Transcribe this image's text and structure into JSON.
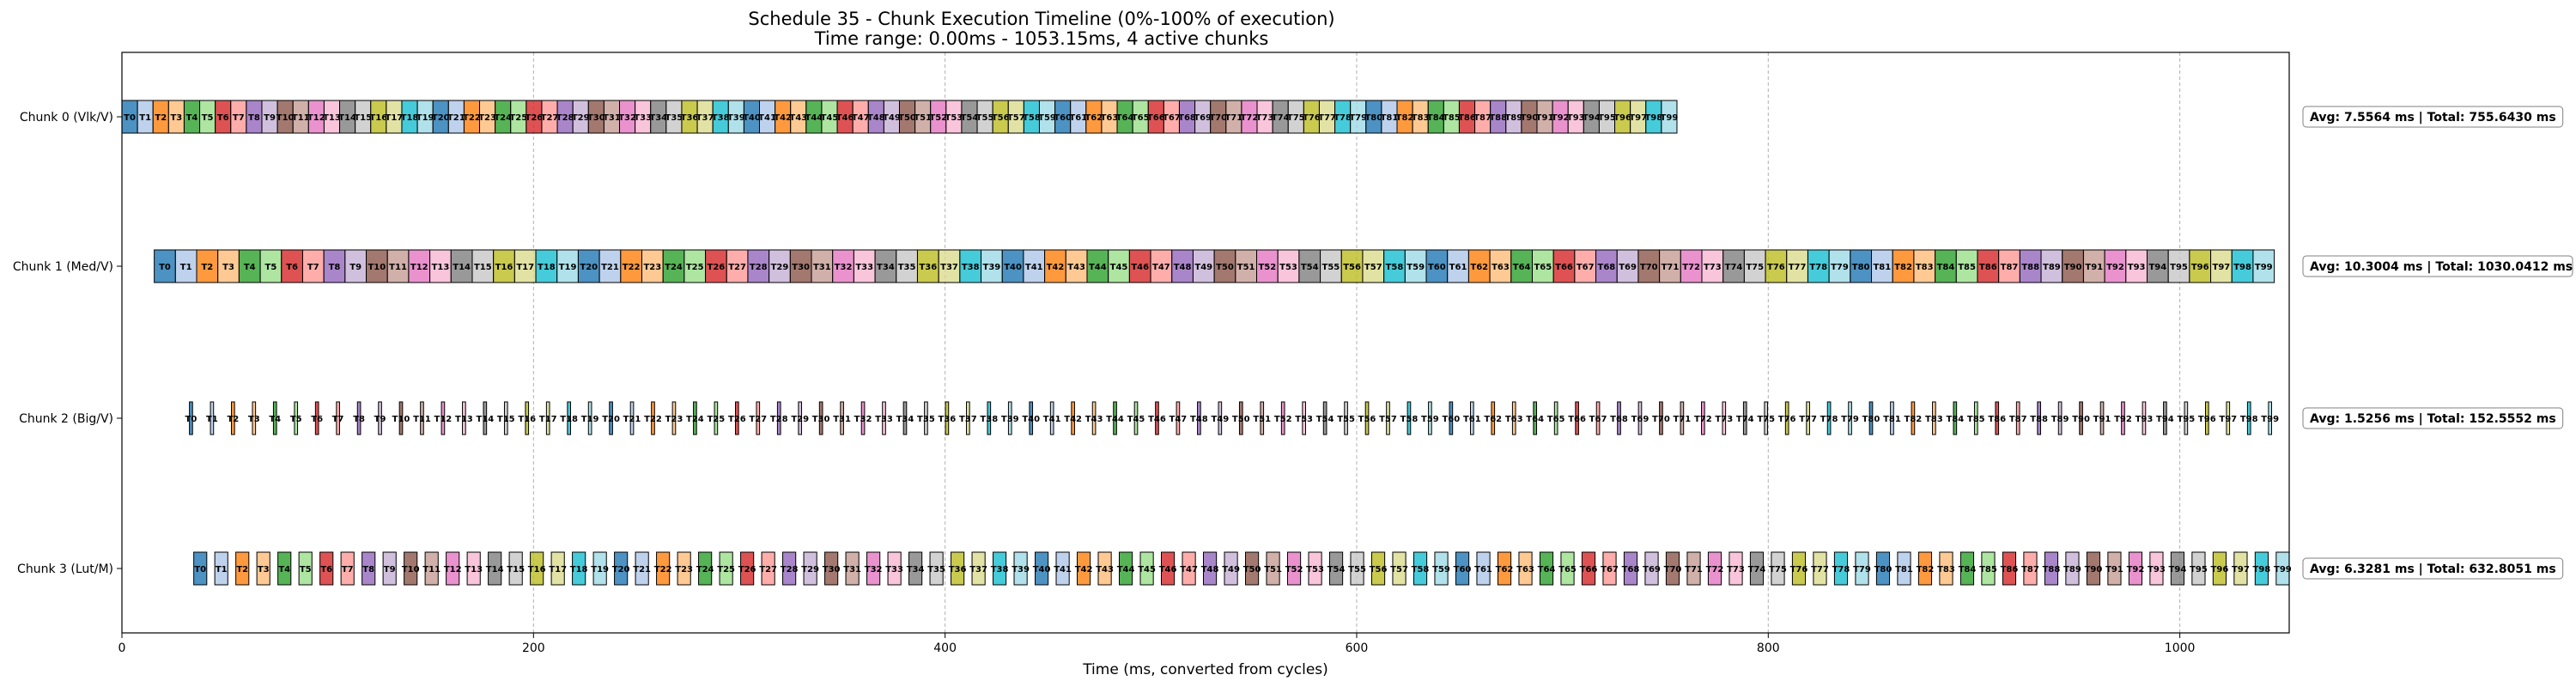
{
  "chart_data": {
    "type": "gantt",
    "title": "Schedule 35 - Chunk Execution Timeline (0%-100% of execution)",
    "subtitle": "Time range: 0.00ms - 1053.15ms, 4 active chunks",
    "xlabel": "Time (ms, converted from cycles)",
    "xlim": [
      0,
      1053.15
    ],
    "xticks": [
      0,
      200,
      400,
      600,
      800,
      1000
    ],
    "grid": "vertical-dashed",
    "palette": [
      "#1f77b4",
      "#aec7e8",
      "#ff7f0e",
      "#ffbb78",
      "#2ca02c",
      "#98df8a",
      "#d62728",
      "#ff9896",
      "#9467bd",
      "#c5b0d5",
      "#8c564b",
      "#c49c94",
      "#e377c2",
      "#f7b6d2",
      "#7f7f7f",
      "#c7c7c7",
      "#bcbd22",
      "#dbdb8d",
      "#17becf",
      "#9edae5"
    ],
    "chunks": [
      {
        "name": "Chunk 0 (Vlk/V)",
        "start": 0,
        "end": 755.64,
        "duration": 7.5564,
        "tasks": 100,
        "stats": "Avg: 7.5564 ms | Total: 755.6430 ms"
      },
      {
        "name": "Chunk 1 (Med/V)",
        "start": 15.7,
        "end": 1045.9,
        "duration": 10.3004,
        "tasks": 100,
        "stats": "Avg: 10.3004 ms | Total: 1030.0412 ms"
      },
      {
        "name": "Chunk 2 (Big/V)",
        "start": 32.8,
        "end": 1044.6,
        "duration": 1.5256,
        "tasks": 100,
        "stats": "Avg: 1.5256 ms | Total: 152.5552 ms"
      },
      {
        "name": "Chunk 3 (Lut/M)",
        "start": 34.9,
        "end": 1053.15,
        "duration": 6.3281,
        "tasks": 100,
        "stats": "Avg: 6.3281 ms | Total: 632.8051 ms"
      }
    ]
  }
}
